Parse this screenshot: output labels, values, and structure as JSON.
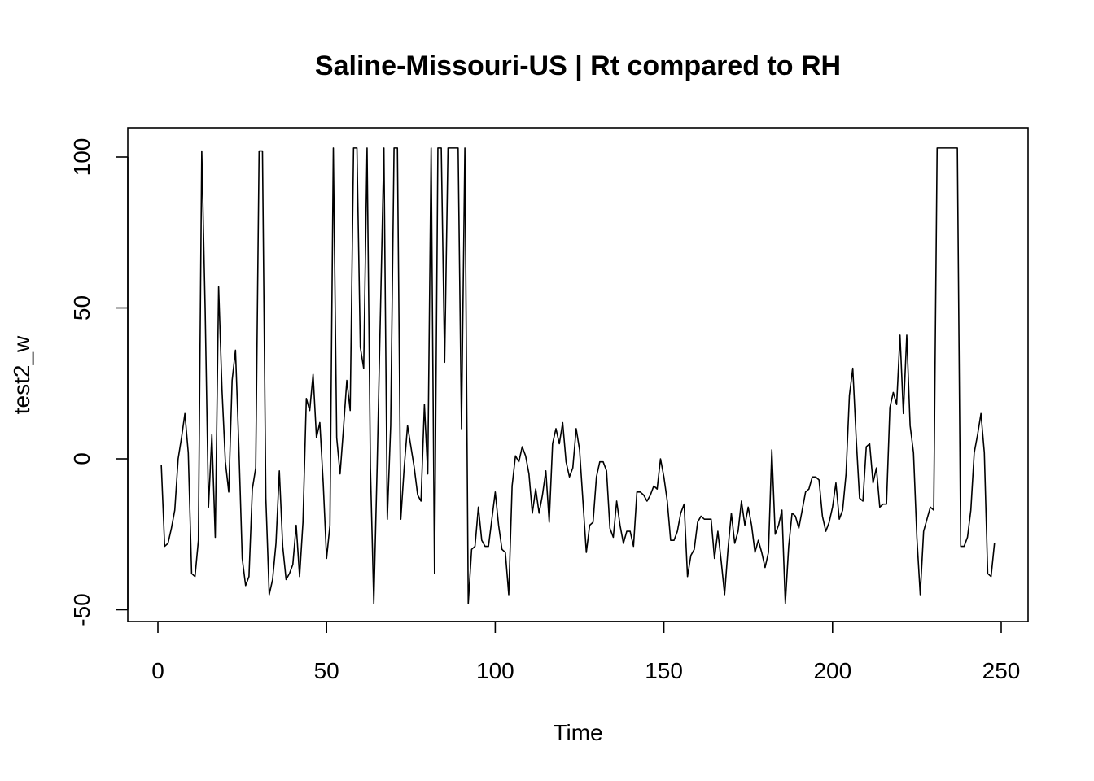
{
  "chart_data": {
    "type": "line",
    "title": "Saline-Missouri-US | Rt compared to RH",
    "xlabel": "Time",
    "ylabel": "test2_w",
    "xlim": [
      0,
      250
    ],
    "ylim": [
      -50,
      100
    ],
    "x_ticks": [
      0,
      50,
      100,
      150,
      200,
      250
    ],
    "y_ticks": [
      -50,
      0,
      50,
      100
    ],
    "x_tick_labels": [
      "0",
      "50",
      "100",
      "150",
      "200",
      "250"
    ],
    "y_tick_labels": [
      "-50",
      "0",
      "50",
      "100"
    ],
    "grid": false,
    "legend": "none",
    "colors": {
      "line": "#000000",
      "frame": "#000000",
      "background": "#ffffff"
    },
    "series": [
      {
        "x_start": 1,
        "x_step": 1,
        "values": [
          -2,
          -29,
          -28,
          -23,
          -17,
          0,
          7,
          15,
          2,
          -38,
          -39,
          -27,
          102,
          50,
          -16,
          8,
          -26,
          57,
          23,
          -1,
          -11,
          26,
          36,
          4,
          -33,
          -42,
          -39,
          -10,
          -3,
          102,
          102,
          -13,
          -45,
          -40,
          -28,
          -4,
          -29,
          -40,
          -38,
          -35,
          -22,
          -39,
          -21,
          20,
          16,
          28,
          7,
          12,
          -8,
          -33,
          -22,
          103,
          7,
          -5,
          10,
          26,
          16,
          103,
          103,
          37,
          30,
          103,
          -3,
          -48,
          -2,
          50,
          103,
          -20,
          11,
          103,
          103,
          -20,
          -3,
          11,
          4,
          -3,
          -12,
          -14,
          18,
          -5,
          103,
          -38,
          103,
          103,
          32,
          103,
          103,
          103,
          103,
          10,
          103,
          -48,
          -30,
          -29,
          -16,
          -27,
          -29,
          -29,
          -20,
          -11,
          -22,
          -30,
          -31,
          -45,
          -9,
          1,
          -1,
          4,
          1,
          -5,
          -18,
          -10,
          -18,
          -12,
          -4,
          -21,
          5,
          10,
          5,
          12,
          -1,
          -6,
          -3,
          10,
          3,
          -14,
          -31,
          -22,
          -21,
          -6,
          -1,
          -1,
          -4,
          -23,
          -26,
          -14,
          -22,
          -28,
          -24,
          -24,
          -29,
          -11,
          -11,
          -12,
          -14,
          -12,
          -9,
          -10,
          0,
          -6,
          -14,
          -27,
          -27,
          -24,
          -18,
          -15,
          -39,
          -32,
          -30,
          -21,
          -19,
          -20,
          -20,
          -20,
          -33,
          -24,
          -34,
          -45,
          -30,
          -18,
          -28,
          -24,
          -14,
          -22,
          -16,
          -22,
          -31,
          -27,
          -31,
          -36,
          -31,
          3,
          -25,
          -22,
          -17,
          -48,
          -29,
          -18,
          -19,
          -23,
          -17,
          -11,
          -10,
          -6,
          -6,
          -7,
          -19,
          -24,
          -21,
          -16,
          -8,
          -20,
          -17,
          -5,
          21,
          30,
          7,
          -13,
          -14,
          4,
          5,
          -8,
          -3,
          -16,
          -15,
          -15,
          17,
          22,
          18,
          41,
          15,
          41,
          11,
          2,
          -26,
          -45,
          -24,
          -20,
          -16,
          -17,
          103,
          103,
          103,
          103,
          103,
          103,
          103,
          -29,
          -29,
          -26,
          -17,
          2,
          8,
          15,
          2,
          -38,
          -39,
          -28
        ]
      }
    ]
  }
}
